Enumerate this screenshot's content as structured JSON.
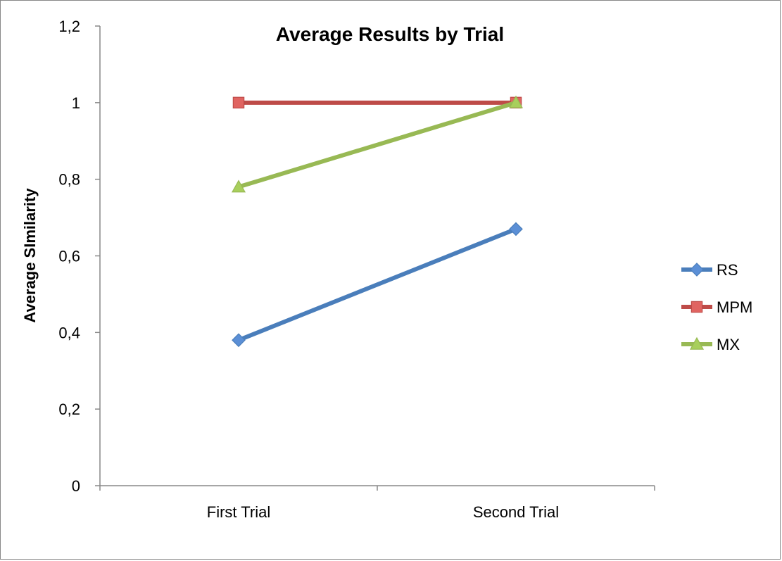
{
  "chart_data": {
    "type": "line",
    "title": "Average Results by Trial",
    "xlabel": "",
    "ylabel": "Average SImilarity",
    "categories": [
      "First Trial",
      "Second Trial"
    ],
    "ylim": [
      0,
      1.2
    ],
    "yticks": [
      0,
      0.2,
      0.4,
      0.6,
      0.8,
      1,
      1.2
    ],
    "ytick_labels": [
      "0",
      "0,2",
      "0,4",
      "0,6",
      "0,8",
      "1",
      "1,2"
    ],
    "grid": false,
    "legend_position": "right",
    "series": [
      {
        "name": "RS",
        "values": [
          0.38,
          0.67
        ],
        "color": "#4a7ebb",
        "marker": "diamond",
        "marker_color": "#5b8fd6"
      },
      {
        "name": "MPM",
        "values": [
          1.0,
          1.0
        ],
        "color": "#be4b48",
        "marker": "square",
        "marker_color": "#e06461"
      },
      {
        "name": "MX",
        "values": [
          0.78,
          1.0
        ],
        "color": "#98b954",
        "marker": "triangle",
        "marker_color": "#a8cf5c"
      }
    ]
  }
}
